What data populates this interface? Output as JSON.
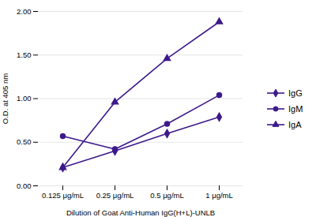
{
  "chart_data": {
    "type": "line",
    "xlabel": "Dilution of Goat Anti-Human IgG(H+L)-UNLB",
    "ylabel": "O.D. at 405 nm",
    "categories": [
      "0.125 μg/mL",
      "0.25 μg/mL",
      "0.5 μg/mL",
      "1 μg/mL"
    ],
    "series": [
      {
        "name": "IgG",
        "color": "#3d1a8a",
        "marker": "diamond",
        "values": [
          0.21,
          0.4,
          0.6,
          0.79
        ]
      },
      {
        "name": "IgM",
        "color": "#3d1a8a",
        "marker": "circle",
        "values": [
          0.57,
          0.42,
          0.71,
          1.04
        ]
      },
      {
        "name": "IgA",
        "color": "#3d1a8a",
        "marker": "triangle",
        "values": [
          0.21,
          0.96,
          1.46,
          1.88
        ]
      }
    ],
    "ylim": [
      0.0,
      2.0
    ],
    "yticks": [
      {
        "value": 0.0,
        "label": "0.00"
      },
      {
        "value": 0.5,
        "label": "0.50"
      },
      {
        "value": 1.0,
        "label": "1.00"
      },
      {
        "value": 1.5,
        "label": "1.50"
      },
      {
        "value": 2.0,
        "label": "2.00"
      }
    ],
    "grid": true,
    "legend": "right"
  }
}
